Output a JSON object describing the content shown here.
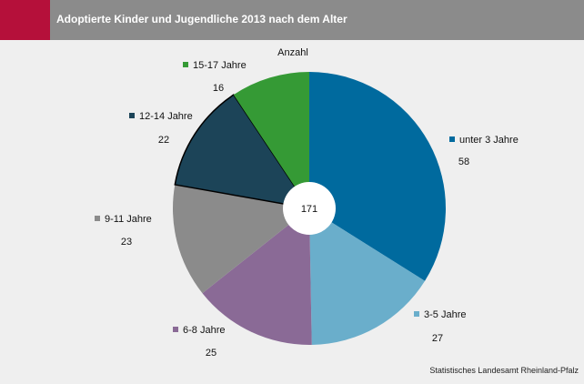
{
  "header": {
    "title": "Adoptierte Kinder und Jugendliche 2013 nach dem Alter",
    "brand_color": "#b5103a",
    "bar_color": "#8b8b8b"
  },
  "chart_data": {
    "type": "pie",
    "subtitle": "Anzahl",
    "total": "171",
    "categories": [
      "unter 3 Jahre",
      "3-5 Jahre",
      "6-8 Jahre",
      "9-11 Jahre",
      "12-14 Jahre",
      "15-17 Jahre"
    ],
    "values": [
      58,
      27,
      25,
      23,
      22,
      16
    ],
    "colors": [
      "#006a9e",
      "#6aaecb",
      "#8a6a96",
      "#8b8b8b",
      "#1c4458",
      "#359a35"
    ],
    "donut_hole": true,
    "legend_placement": "around"
  },
  "footer": {
    "source": "Statistisches Landesamt Rheinland-Pfalz"
  }
}
